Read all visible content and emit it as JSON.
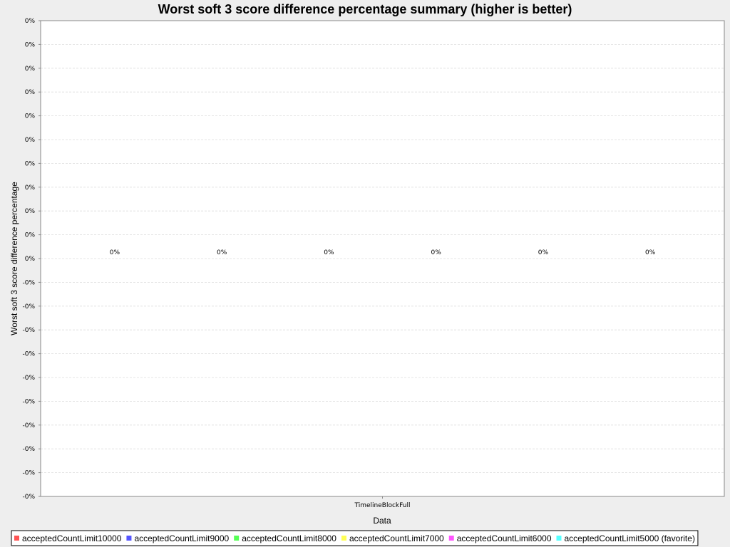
{
  "chart_data": {
    "type": "bar",
    "title": "Worst soft 3 score difference percentage summary (higher is better)",
    "xlabel": "Data",
    "ylabel": "Worst soft 3 score difference percentage",
    "categories": [
      "TimelineBlockFull"
    ],
    "series": [
      {
        "name": "acceptedCountLimit10000",
        "values": [
          0
        ],
        "color": "#ff5555"
      },
      {
        "name": "acceptedCountLimit9000",
        "values": [
          0
        ],
        "color": "#5555ff"
      },
      {
        "name": "acceptedCountLimit8000",
        "values": [
          0
        ],
        "color": "#55ff55"
      },
      {
        "name": "acceptedCountLimit7000",
        "values": [
          0
        ],
        "color": "#ffff55"
      },
      {
        "name": "acceptedCountLimit6000",
        "values": [
          0
        ],
        "color": "#ff55ff"
      },
      {
        "name": "acceptedCountLimit5000 (favorite)",
        "values": [
          0
        ],
        "color": "#55ffff"
      }
    ],
    "data_labels": [
      "0%",
      "0%",
      "0%",
      "0%",
      "0%",
      "0%"
    ],
    "y_tick_labels": [
      "0%",
      "0%",
      "0%",
      "0%",
      "0%",
      "0%",
      "0%",
      "0%",
      "0%",
      "0%",
      "0%",
      "-0%",
      "-0%",
      "-0%",
      "-0%",
      "-0%",
      "-0%",
      "-0%",
      "-0%",
      "-0%",
      "-0%"
    ],
    "grid": true,
    "legend_position": "bottom",
    "background_color": "#eeeeee",
    "plot_background_color": "#ffffff",
    "grid_color": "#dddddd"
  }
}
